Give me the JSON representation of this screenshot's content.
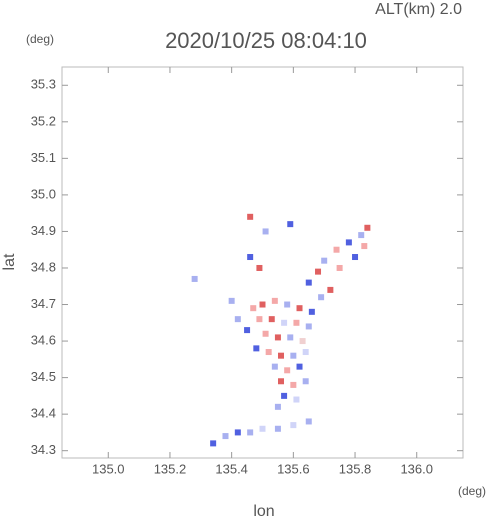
{
  "chart_data": {
    "type": "scatter",
    "title": "2020/10/25 08:04:10",
    "annotation": "ALT(km) 2.0",
    "x_label": "lon",
    "y_label": "lat",
    "x_unit": "(deg)",
    "y_unit": "(deg)",
    "xlim": [
      134.85,
      136.15
    ],
    "ylim": [
      34.28,
      35.35
    ],
    "xticks": [
      {
        "value": 135.0,
        "label": "135.0"
      },
      135.2,
      135.4,
      135.6,
      135.8,
      {
        "value": 136.0,
        "label": "136.0"
      }
    ],
    "yticks": [
      34.3,
      34.4,
      34.5,
      34.6,
      34.7,
      34.8,
      34.9,
      {
        "value": 35.0,
        "label": "35.0"
      },
      35.1,
      35.2,
      35.3
    ],
    "x": [
      135.5,
      135.54,
      135.58,
      135.62,
      135.66,
      135.49,
      135.53,
      135.57,
      135.61,
      135.65,
      135.45,
      135.51,
      135.55,
      135.59,
      135.63,
      135.48,
      135.52,
      135.56,
      135.6,
      135.64,
      135.54,
      135.58,
      135.62,
      135.56,
      135.6,
      135.64,
      135.57,
      135.61,
      135.55,
      135.47,
      135.42,
      135.65,
      135.68,
      135.7,
      135.74,
      135.78,
      135.82,
      135.84,
      135.83,
      135.8,
      135.72,
      135.69,
      135.75,
      135.34,
      135.38,
      135.42,
      135.46,
      135.5,
      135.55,
      135.6,
      135.65,
      135.46,
      135.51,
      135.59,
      135.28,
      135.49,
      135.46,
      135.4
    ],
    "y": [
      34.7,
      34.71,
      34.7,
      34.69,
      34.68,
      34.66,
      34.66,
      34.65,
      34.65,
      34.64,
      34.63,
      34.62,
      34.61,
      34.61,
      34.6,
      34.58,
      34.57,
      34.56,
      34.56,
      34.57,
      34.53,
      34.52,
      34.53,
      34.49,
      34.48,
      34.49,
      34.45,
      34.44,
      34.42,
      34.69,
      34.66,
      34.76,
      34.79,
      34.82,
      34.85,
      34.87,
      34.89,
      34.91,
      34.86,
      34.83,
      34.74,
      34.72,
      34.8,
      34.32,
      34.34,
      34.35,
      34.35,
      34.36,
      34.36,
      34.37,
      34.38,
      34.94,
      34.9,
      34.92,
      34.77,
      34.8,
      34.83,
      34.71
    ],
    "colors": [
      "#e06060",
      "#f4a8a8",
      "#a8b0f0",
      "#e06060",
      "#5060e0",
      "#f4a8a8",
      "#e06060",
      "#d0d4f8",
      "#f4a8a8",
      "#a8b0f0",
      "#5060e0",
      "#f4a8a8",
      "#e06060",
      "#a8b0f0",
      "#f0d0d0",
      "#5060e0",
      "#f4a8a8",
      "#e06060",
      "#a8b0f0",
      "#d0d4f8",
      "#a8b0f0",
      "#f4a8a8",
      "#5060e0",
      "#e06060",
      "#f4a8a8",
      "#a8b0f0",
      "#5060e0",
      "#d0d4f8",
      "#a8b0f0",
      "#f4a8a8",
      "#a8b0f0",
      "#5060e0",
      "#e06060",
      "#a8b0f0",
      "#f4a8a8",
      "#5060e0",
      "#a8b0f0",
      "#e06060",
      "#f4a8a8",
      "#5060e0",
      "#e06060",
      "#a8b0f0",
      "#f4a8a8",
      "#5060e0",
      "#a8b0f0",
      "#5060e0",
      "#a8b0f0",
      "#d0d4f8",
      "#a8b0f0",
      "#d0d4f8",
      "#a8b0f0",
      "#e06060",
      "#a8b0f0",
      "#5060e0",
      "#a8b0f0",
      "#e06060",
      "#5060e0",
      "#a8b0f0"
    ],
    "marker_size": 6
  }
}
